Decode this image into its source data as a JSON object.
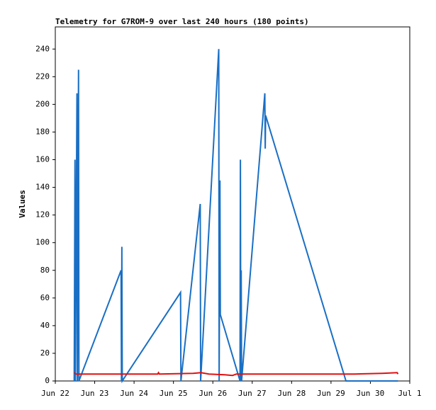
{
  "chart_data": {
    "type": "line",
    "title": "Telemetry for G7ROM-9 over last 240 hours (180 points)",
    "ylabel": "Values",
    "xlim": [
      0,
      9
    ],
    "xticks": [
      {
        "value": 0,
        "label": "Jun 22"
      },
      {
        "value": 1,
        "label": "Jun 23"
      },
      {
        "value": 2,
        "label": "Jun 24"
      },
      {
        "value": 3,
        "label": "Jun 25"
      },
      {
        "value": 4,
        "label": "Jun 26"
      },
      {
        "value": 5,
        "label": "Jun 27"
      },
      {
        "value": 6,
        "label": "Jun 28"
      },
      {
        "value": 7,
        "label": "Jun 29"
      },
      {
        "value": 8,
        "label": "Jun 30"
      },
      {
        "value": 9,
        "label": "Jul 1"
      }
    ],
    "ylim": [
      0,
      256
    ],
    "yticks": [
      0,
      20,
      40,
      60,
      80,
      100,
      120,
      140,
      160,
      180,
      200,
      220,
      240
    ],
    "series": [
      {
        "color": "#1a6fc4",
        "x": [
          0.48,
          0.5,
          0.51,
          0.55,
          0.56,
          0.59,
          0.6,
          1.67,
          1.68,
          1.69,
          1.7,
          3.18,
          3.19,
          3.68,
          3.69,
          4.15,
          4.16,
          4.18,
          4.19,
          4.69,
          4.7,
          4.71,
          4.72,
          4.73,
          5.32,
          5.33,
          5.34,
          7.38,
          8.7
        ],
        "values": [
          0,
          160,
          0,
          208,
          0,
          225,
          0,
          80,
          0,
          97,
          0,
          64,
          0,
          128,
          0,
          240,
          0,
          145,
          48,
          0,
          160,
          0,
          80,
          0,
          208,
          168,
          192,
          0,
          0
        ]
      },
      {
        "color": "#e01010",
        "x": [
          0.48,
          0.52,
          2.6,
          2.62,
          2.64,
          3.5,
          3.7,
          3.9,
          4.3,
          4.5,
          4.6,
          7.6,
          8.3,
          8.68,
          8.7
        ],
        "values": [
          6,
          5,
          5,
          6,
          5,
          5.5,
          6,
          5,
          4.5,
          4,
          5,
          5,
          5.5,
          6,
          5
        ]
      }
    ]
  }
}
